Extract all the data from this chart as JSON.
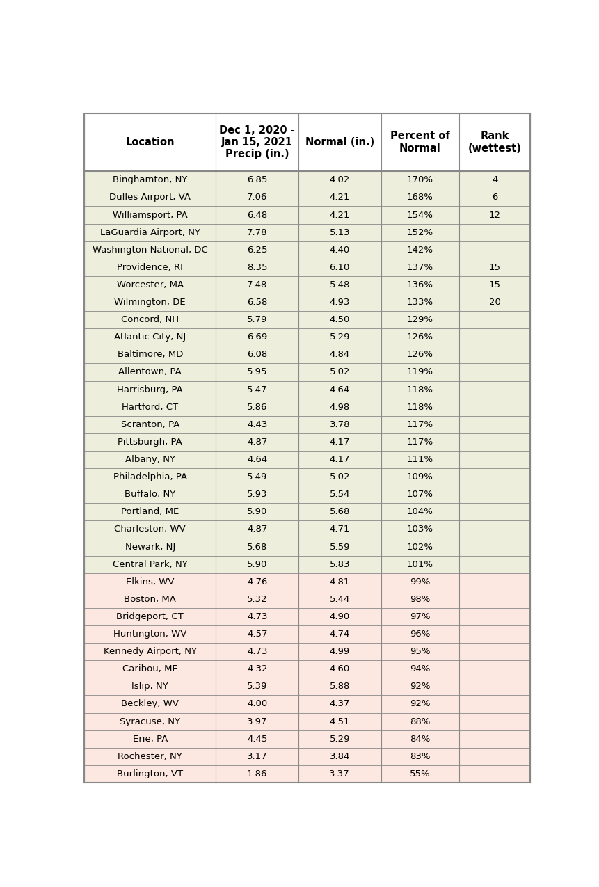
{
  "header_texts": [
    "Location",
    "Dec 1, 2020 -\nJan 15, 2021\nPrecip (in.)",
    "Normal (in.)",
    "Percent of\nNormal",
    "Rank\n(wettest)"
  ],
  "rows": [
    [
      "Binghamton, NY",
      "6.85",
      "4.02",
      "170%",
      "4"
    ],
    [
      "Dulles Airport, VA",
      "7.06",
      "4.21",
      "168%",
      "6"
    ],
    [
      "Williamsport, PA",
      "6.48",
      "4.21",
      "154%",
      "12"
    ],
    [
      "LaGuardia Airport, NY",
      "7.78",
      "5.13",
      "152%",
      ""
    ],
    [
      "Washington National, DC",
      "6.25",
      "4.40",
      "142%",
      ""
    ],
    [
      "Providence, RI",
      "8.35",
      "6.10",
      "137%",
      "15"
    ],
    [
      "Worcester, MA",
      "7.48",
      "5.48",
      "136%",
      "15"
    ],
    [
      "Wilmington, DE",
      "6.58",
      "4.93",
      "133%",
      "20"
    ],
    [
      "Concord, NH",
      "5.79",
      "4.50",
      "129%",
      ""
    ],
    [
      "Atlantic City, NJ",
      "6.69",
      "5.29",
      "126%",
      ""
    ],
    [
      "Baltimore, MD",
      "6.08",
      "4.84",
      "126%",
      ""
    ],
    [
      "Allentown, PA",
      "5.95",
      "5.02",
      "119%",
      ""
    ],
    [
      "Harrisburg, PA",
      "5.47",
      "4.64",
      "118%",
      ""
    ],
    [
      "Hartford, CT",
      "5.86",
      "4.98",
      "118%",
      ""
    ],
    [
      "Scranton, PA",
      "4.43",
      "3.78",
      "117%",
      ""
    ],
    [
      "Pittsburgh, PA",
      "4.87",
      "4.17",
      "117%",
      ""
    ],
    [
      "Albany, NY",
      "4.64",
      "4.17",
      "111%",
      ""
    ],
    [
      "Philadelphia, PA",
      "5.49",
      "5.02",
      "109%",
      ""
    ],
    [
      "Buffalo, NY",
      "5.93",
      "5.54",
      "107%",
      ""
    ],
    [
      "Portland, ME",
      "5.90",
      "5.68",
      "104%",
      ""
    ],
    [
      "Charleston, WV",
      "4.87",
      "4.71",
      "103%",
      ""
    ],
    [
      "Newark, NJ",
      "5.68",
      "5.59",
      "102%",
      ""
    ],
    [
      "Central Park, NY",
      "5.90",
      "5.83",
      "101%",
      ""
    ],
    [
      "Elkins, WV",
      "4.76",
      "4.81",
      "99%",
      ""
    ],
    [
      "Boston, MA",
      "5.32",
      "5.44",
      "98%",
      ""
    ],
    [
      "Bridgeport, CT",
      "4.73",
      "4.90",
      "97%",
      ""
    ],
    [
      "Huntington, WV",
      "4.57",
      "4.74",
      "96%",
      ""
    ],
    [
      "Kennedy Airport, NY",
      "4.73",
      "4.99",
      "95%",
      ""
    ],
    [
      "Caribou, ME",
      "4.32",
      "4.60",
      "94%",
      ""
    ],
    [
      "Islip, NY",
      "5.39",
      "5.88",
      "92%",
      ""
    ],
    [
      "Beckley, WV",
      "4.00",
      "4.37",
      "92%",
      ""
    ],
    [
      "Syracuse, NY",
      "3.97",
      "4.51",
      "88%",
      ""
    ],
    [
      "Erie, PA",
      "4.45",
      "5.29",
      "84%",
      ""
    ],
    [
      "Rochester, NY",
      "3.17",
      "3.84",
      "83%",
      ""
    ],
    [
      "Burlington, VT",
      "1.86",
      "3.37",
      "55%",
      ""
    ]
  ],
  "above_normal_bg": "#eeeedd",
  "below_normal_bg": "#fce8e0",
  "header_bg": "#ffffff",
  "border_color": "#888888",
  "col_props": [
    0.295,
    0.185,
    0.185,
    0.175,
    0.16
  ],
  "header_fontsize": 10.5,
  "data_fontsize": 9.5
}
